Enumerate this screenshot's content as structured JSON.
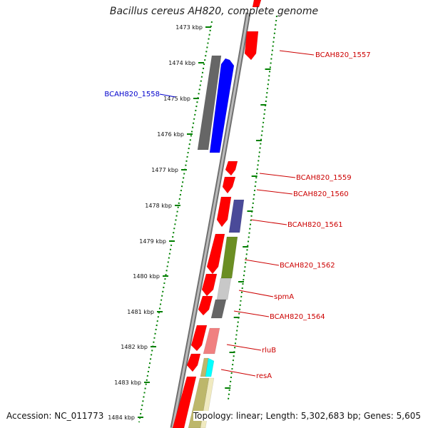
{
  "title": "Bacillus cereus AH820, complete genome",
  "accession": "Accession: NC_011773",
  "topology": "Topology: linear; Length: 5,302,683 bp; Genes: 5,605",
  "ticks": [
    "1473 kbp",
    "1474 kbp",
    "1475 kbp",
    "1476 kbp",
    "1477 kbp",
    "1478 kbp",
    "1479 kbp",
    "1480 kbp",
    "1481 kbp",
    "1482 kbp",
    "1483 kbp",
    "1484 kbp"
  ],
  "gene_labels": [
    {
      "text": "BCAH820_1557",
      "color": "#cc0000"
    },
    {
      "text": "BCAH820_1558",
      "color": "#0000cc"
    },
    {
      "text": "BCAH820_1559",
      "color": "#cc0000"
    },
    {
      "text": "BCAH820_1560",
      "color": "#cc0000"
    },
    {
      "text": "BCAH820_1561",
      "color": "#cc0000"
    },
    {
      "text": "BCAH820_1562",
      "color": "#cc0000"
    },
    {
      "text": "spmA",
      "color": "#cc0000"
    },
    {
      "text": "BCAH820_1564",
      "color": "#cc0000"
    },
    {
      "text": "rluB",
      "color": "#cc0000"
    },
    {
      "text": "resA",
      "color": "#cc0000"
    }
  ],
  "colors": {
    "gene_red": "#ff0000",
    "gene_blue": "#0000ff",
    "gene_darkgray": "#666666",
    "gene_navy": "#4a4a99",
    "gene_olive": "#6b8e23",
    "gene_lightgray": "#c8c8c8",
    "gene_pink": "#f08080",
    "gene_cyan": "#00ffff",
    "gene_khaki": "#bdb76b",
    "gene_cream": "#f0eac0",
    "backbone": "#999999",
    "ruler_dots": "#008000"
  }
}
